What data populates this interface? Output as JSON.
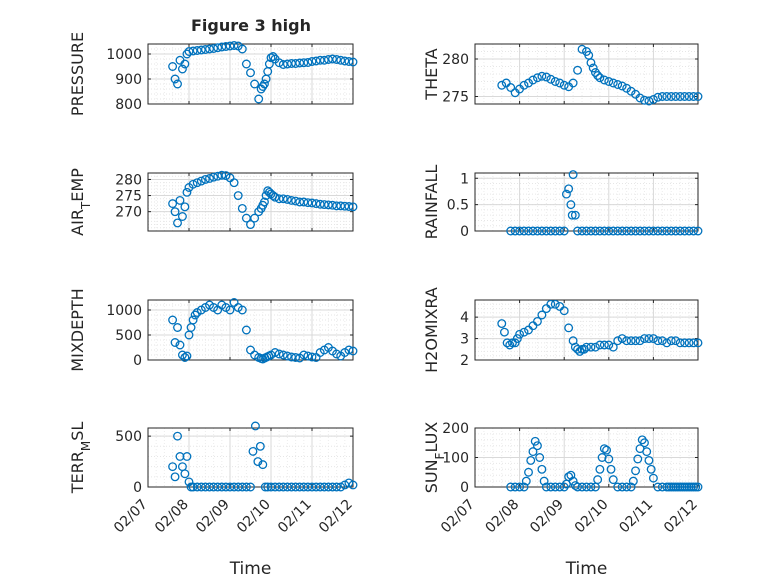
{
  "figure": {
    "title": "Figure 3 high",
    "marker_color": "#0072BD"
  },
  "chart_data": [
    {
      "type": "scatter",
      "title": "Figure 3 high",
      "ylabel": "PRESSURE",
      "xlabel": "",
      "xlim": [
        0,
        5
      ],
      "ylim": [
        800,
        1040
      ],
      "yticks": [
        800,
        900,
        1000
      ],
      "x": [
        0.6,
        0.66,
        0.72,
        0.78,
        0.84,
        0.9,
        0.95,
        1.0,
        1.1,
        1.2,
        1.3,
        1.4,
        1.5,
        1.6,
        1.7,
        1.8,
        1.9,
        2.0,
        2.1,
        2.2,
        2.3,
        2.4,
        2.5,
        2.6,
        2.7,
        2.76,
        2.8,
        2.84,
        2.88,
        2.92,
        2.96,
        3.0,
        3.05,
        3.1,
        3.2,
        3.3,
        3.4,
        3.5,
        3.6,
        3.7,
        3.8,
        3.9,
        4.0,
        4.1,
        4.2,
        4.3,
        4.4,
        4.5,
        4.6,
        4.7,
        4.8,
        4.9,
        5.0
      ],
      "y": [
        950,
        900,
        880,
        975,
        940,
        960,
        1000,
        1010,
        1012,
        1014,
        1016,
        1018,
        1020,
        1022,
        1025,
        1028,
        1030,
        1032,
        1034,
        1032,
        1020,
        960,
        925,
        880,
        820,
        860,
        870,
        880,
        900,
        930,
        960,
        985,
        990,
        980,
        965,
        958,
        960,
        962,
        962,
        964,
        965,
        966,
        970,
        972,
        975,
        975,
        978,
        980,
        978,
        975,
        972,
        970,
        968
      ]
    },
    {
      "type": "scatter",
      "ylabel": "THETA",
      "xlabel": "",
      "xlim": [
        0,
        5
      ],
      "ylim": [
        274,
        282
      ],
      "yticks": [
        275,
        280
      ],
      "x": [
        0.6,
        0.7,
        0.8,
        0.9,
        1.0,
        1.1,
        1.2,
        1.3,
        1.4,
        1.5,
        1.6,
        1.7,
        1.8,
        1.9,
        2.0,
        2.1,
        2.2,
        2.3,
        2.4,
        2.5,
        2.55,
        2.6,
        2.65,
        2.7,
        2.75,
        2.8,
        2.9,
        3.0,
        3.1,
        3.2,
        3.3,
        3.4,
        3.5,
        3.6,
        3.7,
        3.8,
        3.9,
        4.0,
        4.1,
        4.2,
        4.3,
        4.4,
        4.5,
        4.6,
        4.7,
        4.8,
        4.9,
        5.0
      ],
      "y": [
        276.5,
        276.8,
        276.2,
        275.5,
        276.0,
        276.5,
        276.8,
        277.2,
        277.5,
        277.7,
        277.6,
        277.3,
        277.0,
        276.8,
        276.5,
        276.3,
        276.8,
        278.5,
        281.3,
        281.0,
        280.5,
        279.5,
        278.8,
        278.2,
        277.8,
        277.5,
        277.2,
        277.0,
        276.8,
        276.6,
        276.4,
        276.1,
        275.7,
        275.3,
        274.8,
        274.5,
        274.4,
        274.6,
        274.9,
        275.0,
        275.0,
        275.0,
        275.0,
        275.0,
        275.0,
        275.0,
        275.0,
        275.0
      ]
    },
    {
      "type": "scatter",
      "ylabel": "AIR_TEMP",
      "xlabel": "",
      "xlim": [
        0,
        5
      ],
      "ylim": [
        264,
        282
      ],
      "yticks": [
        270,
        275,
        280
      ],
      "x": [
        0.6,
        0.66,
        0.72,
        0.78,
        0.84,
        0.9,
        0.95,
        1.0,
        1.1,
        1.2,
        1.3,
        1.4,
        1.5,
        1.6,
        1.7,
        1.8,
        1.9,
        2.0,
        2.1,
        2.2,
        2.3,
        2.4,
        2.5,
        2.6,
        2.7,
        2.76,
        2.8,
        2.84,
        2.88,
        2.92,
        2.96,
        3.0,
        3.05,
        3.1,
        3.2,
        3.3,
        3.4,
        3.5,
        3.6,
        3.7,
        3.8,
        3.9,
        4.0,
        4.1,
        4.2,
        4.3,
        4.4,
        4.5,
        4.6,
        4.7,
        4.8,
        4.9,
        5.0
      ],
      "y": [
        272.5,
        270,
        266.5,
        273.5,
        268.5,
        271.5,
        276,
        277.5,
        278.5,
        279,
        279.5,
        280,
        280.3,
        280.7,
        281,
        281.3,
        281.2,
        280.5,
        279,
        275,
        271,
        268,
        266,
        268,
        270,
        271,
        272,
        273,
        275,
        276.5,
        276,
        275.5,
        275,
        274.5,
        274,
        274,
        273.8,
        273.5,
        273.3,
        273,
        273,
        272.8,
        272.7,
        272.5,
        272.3,
        272.2,
        272.1,
        272,
        271.8,
        271.8,
        271.7,
        271.6,
        271.5
      ]
    },
    {
      "type": "scatter",
      "ylabel": "RAINFALL",
      "xlabel": "",
      "xlim": [
        0,
        5
      ],
      "ylim": [
        0,
        1.1
      ],
      "yticks": [
        0,
        0.5,
        1
      ],
      "x": [
        0.8,
        0.9,
        1.0,
        1.1,
        1.2,
        1.3,
        1.4,
        1.5,
        1.6,
        1.7,
        1.8,
        1.9,
        2.0,
        2.05,
        2.1,
        2.15,
        2.18,
        2.2,
        2.25,
        2.3,
        2.4,
        2.5,
        2.6,
        2.7,
        2.8,
        2.9,
        3.0,
        3.1,
        3.2,
        3.3,
        3.4,
        3.5,
        3.6,
        3.7,
        3.8,
        3.9,
        4.0,
        4.1,
        4.2,
        4.3,
        4.4,
        4.5,
        4.6,
        4.7,
        4.8,
        4.9,
        5.0
      ],
      "y": [
        0,
        0,
        0,
        0,
        0,
        0,
        0,
        0,
        0,
        0,
        0,
        0,
        0,
        0.7,
        0.8,
        0.5,
        0.3,
        1.07,
        0.3,
        0,
        0,
        0,
        0,
        0,
        0,
        0,
        0,
        0,
        0,
        0,
        0,
        0,
        0,
        0,
        0,
        0,
        0,
        0,
        0,
        0,
        0,
        0,
        0,
        0,
        0,
        0,
        0
      ]
    },
    {
      "type": "scatter",
      "ylabel": "MIXDEPTH",
      "xlabel": "",
      "xlim": [
        0,
        5
      ],
      "ylim": [
        0,
        1200
      ],
      "yticks": [
        0,
        500,
        1000
      ],
      "x": [
        0.6,
        0.66,
        0.72,
        0.78,
        0.84,
        0.9,
        0.95,
        1.0,
        1.05,
        1.1,
        1.15,
        1.2,
        1.3,
        1.4,
        1.5,
        1.6,
        1.7,
        1.8,
        1.9,
        2.0,
        2.1,
        2.2,
        2.3,
        2.4,
        2.5,
        2.6,
        2.7,
        2.76,
        2.8,
        2.85,
        2.9,
        2.95,
        3.0,
        3.1,
        3.2,
        3.3,
        3.4,
        3.5,
        3.6,
        3.7,
        3.8,
        3.9,
        4.0,
        4.1,
        4.2,
        4.3,
        4.4,
        4.5,
        4.6,
        4.7,
        4.8,
        4.9,
        5.0
      ],
      "y": [
        800,
        350,
        650,
        300,
        100,
        50,
        80,
        500,
        650,
        800,
        900,
        950,
        1000,
        1050,
        1100,
        1050,
        1000,
        1100,
        1050,
        1000,
        1150,
        1050,
        1000,
        600,
        200,
        100,
        50,
        30,
        20,
        40,
        60,
        80,
        100,
        150,
        120,
        100,
        80,
        60,
        50,
        40,
        100,
        80,
        60,
        50,
        150,
        200,
        250,
        180,
        120,
        80,
        150,
        200,
        180
      ]
    },
    {
      "type": "scatter",
      "ylabel": "H2OMIXRA",
      "xlabel": "",
      "xlim": [
        0,
        5
      ],
      "ylim": [
        2,
        4.8
      ],
      "yticks": [
        2,
        3,
        4
      ],
      "x": [
        0.6,
        0.66,
        0.72,
        0.78,
        0.84,
        0.9,
        0.95,
        1.0,
        1.1,
        1.2,
        1.3,
        1.4,
        1.5,
        1.6,
        1.7,
        1.8,
        1.9,
        2.0,
        2.1,
        2.2,
        2.25,
        2.3,
        2.35,
        2.4,
        2.45,
        2.5,
        2.6,
        2.7,
        2.8,
        2.9,
        3.0,
        3.1,
        3.2,
        3.3,
        3.4,
        3.5,
        3.6,
        3.7,
        3.8,
        3.9,
        4.0,
        4.1,
        4.2,
        4.3,
        4.4,
        4.5,
        4.6,
        4.7,
        4.8,
        4.9,
        5.0
      ],
      "y": [
        3.7,
        3.3,
        2.8,
        2.7,
        2.8,
        2.8,
        3.0,
        3.2,
        3.3,
        3.4,
        3.6,
        3.8,
        4.1,
        4.4,
        4.6,
        4.6,
        4.5,
        4.3,
        3.5,
        2.9,
        2.6,
        2.5,
        2.4,
        2.5,
        2.5,
        2.6,
        2.6,
        2.6,
        2.7,
        2.7,
        2.7,
        2.6,
        2.9,
        3.0,
        2.9,
        2.9,
        2.9,
        2.9,
        3.0,
        3.0,
        3.0,
        2.9,
        2.9,
        2.8,
        2.9,
        2.9,
        2.8,
        2.8,
        2.8,
        2.8,
        2.8
      ]
    },
    {
      "type": "scatter",
      "ylabel": "TERR_MSL",
      "xlabel": "Time",
      "xlim": [
        0,
        5
      ],
      "ylim": [
        0,
        580
      ],
      "yticks": [
        0,
        500
      ],
      "x": [
        0.6,
        0.66,
        0.72,
        0.78,
        0.84,
        0.9,
        0.95,
        1.0,
        1.05,
        1.1,
        1.2,
        1.3,
        1.4,
        1.5,
        1.6,
        1.7,
        1.8,
        1.9,
        2.0,
        2.1,
        2.2,
        2.3,
        2.4,
        2.5,
        2.56,
        2.62,
        2.68,
        2.74,
        2.8,
        2.86,
        2.92,
        3.0,
        3.1,
        3.2,
        3.3,
        3.4,
        3.5,
        3.6,
        3.7,
        3.8,
        3.9,
        4.0,
        4.1,
        4.2,
        4.3,
        4.4,
        4.5,
        4.6,
        4.7,
        4.8,
        4.9,
        5.0
      ],
      "y": [
        200,
        100,
        500,
        300,
        200,
        130,
        300,
        50,
        0,
        0,
        0,
        0,
        0,
        0,
        0,
        0,
        0,
        0,
        0,
        0,
        0,
        0,
        0,
        0,
        350,
        600,
        250,
        400,
        220,
        0,
        0,
        0,
        0,
        0,
        0,
        0,
        0,
        0,
        0,
        0,
        0,
        0,
        0,
        0,
        0,
        0,
        0,
        0,
        0,
        20,
        40,
        20
      ]
    },
    {
      "type": "scatter",
      "ylabel": "SUN_FLUX",
      "xlabel": "Time",
      "xlim": [
        0,
        5
      ],
      "ylim": [
        0,
        200
      ],
      "yticks": [
        0,
        100,
        200
      ],
      "x": [
        0.8,
        0.9,
        1.0,
        1.1,
        1.15,
        1.2,
        1.25,
        1.3,
        1.35,
        1.4,
        1.45,
        1.5,
        1.55,
        1.6,
        1.7,
        1.8,
        1.9,
        2.0,
        2.05,
        2.1,
        2.15,
        2.2,
        2.25,
        2.3,
        2.4,
        2.5,
        2.6,
        2.7,
        2.75,
        2.8,
        2.85,
        2.9,
        2.95,
        3.0,
        3.05,
        3.1,
        3.2,
        3.3,
        3.4,
        3.5,
        3.55,
        3.6,
        3.65,
        3.7,
        3.75,
        3.8,
        3.85,
        3.9,
        3.95,
        4.0,
        4.1,
        4.2,
        4.3,
        4.35,
        4.4,
        4.45,
        4.5,
        4.55,
        4.6,
        4.65,
        4.7,
        4.75,
        4.8,
        4.85,
        4.9,
        4.95,
        5.0
      ],
      "y": [
        0,
        0,
        0,
        0,
        20,
        50,
        90,
        120,
        155,
        140,
        100,
        60,
        20,
        0,
        0,
        0,
        0,
        0,
        10,
        35,
        40,
        20,
        5,
        0,
        0,
        0,
        0,
        0,
        25,
        60,
        100,
        130,
        125,
        95,
        60,
        25,
        0,
        0,
        0,
        0,
        20,
        55,
        95,
        130,
        160,
        150,
        120,
        90,
        60,
        30,
        0,
        0,
        0,
        0,
        0,
        0,
        0,
        0,
        0,
        0,
        0,
        0,
        0,
        0,
        0,
        0,
        0
      ],
      "xtick_labels": [
        "02/07",
        "02/08",
        "02/09",
        "02/10",
        "02/11",
        "02/12"
      ]
    }
  ],
  "x_axis": {
    "tick_labels": [
      "02/07",
      "02/08",
      "02/09",
      "02/10",
      "02/11",
      "02/12"
    ],
    "label": "Time"
  }
}
